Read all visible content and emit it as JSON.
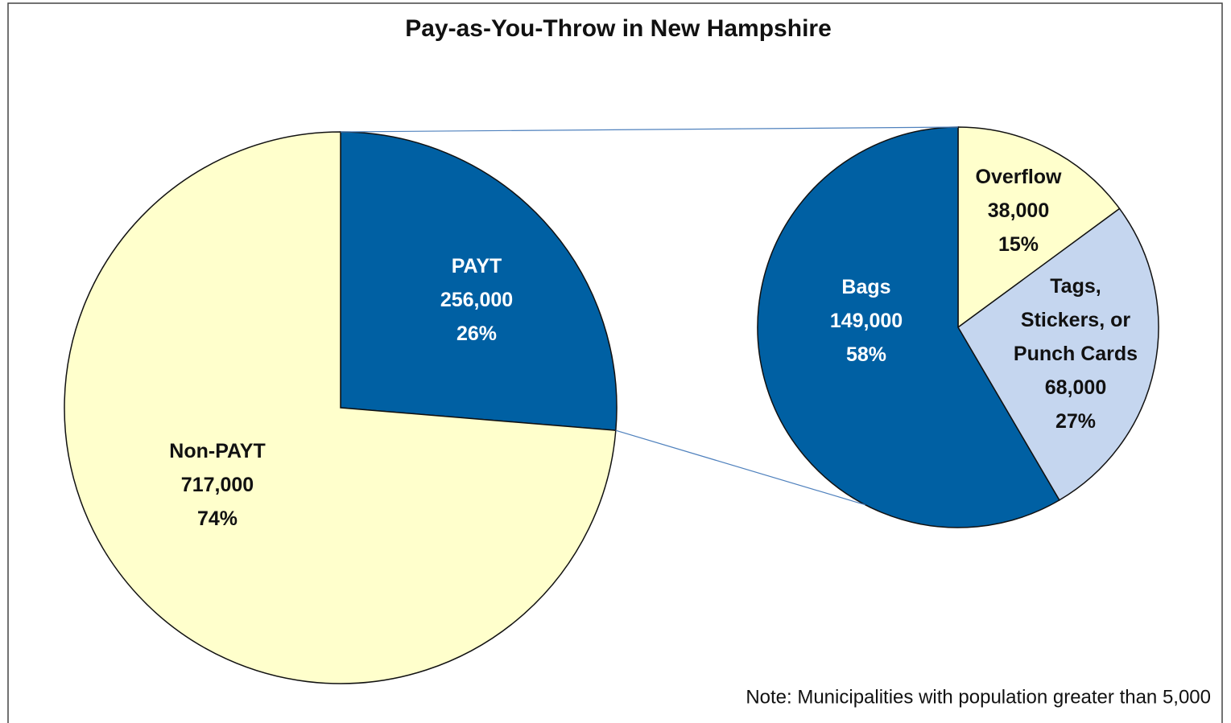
{
  "chart_data": [
    {
      "type": "pie",
      "title": "Pay-as-You-Throw in New Hampshire",
      "note": "Note: Municipalities with population greater than 5,000",
      "categories": [
        "PAYT",
        "Non-PAYT"
      ],
      "values": [
        256000,
        717000
      ],
      "value_labels": [
        "256,000",
        "717,000"
      ],
      "percent_labels": [
        "26%",
        "74%"
      ],
      "colors": [
        "#0060a3",
        "#ffffcc"
      ]
    },
    {
      "type": "pie",
      "categories": [
        "Overflow",
        "Tags, Stickers, or Punch Cards",
        "Bags"
      ],
      "values": [
        38000,
        68000,
        149000
      ],
      "value_labels": [
        "38,000",
        "68,000",
        "149,000"
      ],
      "percent_labels": [
        "15%",
        "27%",
        "58%"
      ],
      "colors": [
        "#ffffcc",
        "#c5d6ef",
        "#0060a3"
      ]
    }
  ]
}
